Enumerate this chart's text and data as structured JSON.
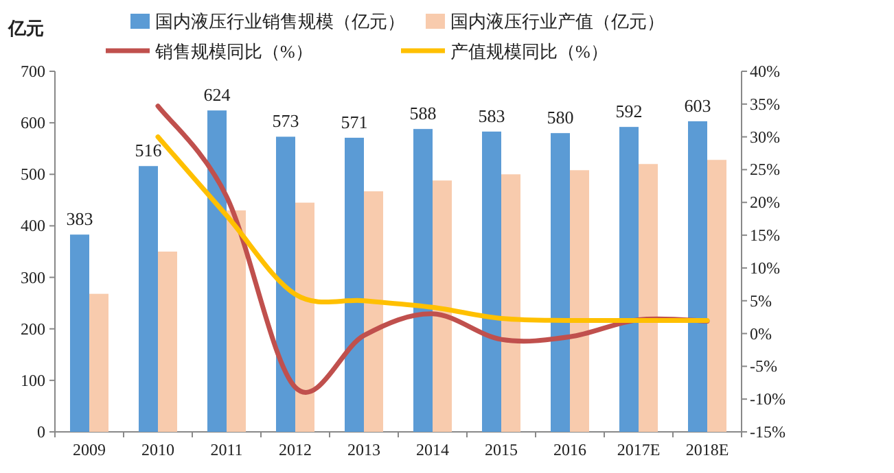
{
  "chart_data": {
    "type": "bar",
    "ylabel": "亿元",
    "categories": [
      "2009",
      "2010",
      "2011",
      "2012",
      "2013",
      "2014",
      "2015",
      "2016",
      "2017E",
      "2018E"
    ],
    "series": [
      {
        "name": "国内液压行业销售规模（亿元）",
        "color": "#5b9bd5",
        "values": [
          383,
          516,
          624,
          573,
          571,
          588,
          583,
          580,
          592,
          603
        ],
        "value_labels": [
          "383",
          "516",
          "624",
          "573",
          "571",
          "588",
          "583",
          "580",
          "592",
          "603"
        ]
      },
      {
        "name": "国内液压行业产值（亿元）",
        "color": "#f8cbad",
        "values": [
          268,
          350,
          430,
          445,
          467,
          488,
          500,
          508,
          520,
          528
        ]
      },
      {
        "name": "销售规模同比（%）",
        "type": "line",
        "axis": "y2",
        "color": "#c0504d",
        "values": [
          null,
          34.7,
          20.9,
          -8.2,
          -0.3,
          3.0,
          -0.9,
          -0.5,
          2.1,
          1.9
        ]
      },
      {
        "name": "产值规模同比（%）",
        "type": "line",
        "axis": "y2",
        "color": "#ffc000",
        "values": [
          null,
          30.0,
          18.0,
          6.0,
          5.0,
          4.0,
          2.3,
          2.0,
          2.0,
          2.0
        ]
      }
    ],
    "ylim": [
      0,
      700
    ],
    "yticks": [
      0,
      100,
      200,
      300,
      400,
      500,
      600,
      700
    ],
    "y2lim": [
      -15,
      40
    ],
    "y2ticks": [
      {
        "value": -15,
        "label": "-15%"
      },
      {
        "value": -10,
        "label": "-10%"
      },
      {
        "value": -5,
        "label": "-5%"
      },
      {
        "value": 0,
        "label": "0%"
      },
      {
        "value": 5,
        "label": "5%"
      },
      {
        "value": 10,
        "label": "10%"
      },
      {
        "value": 15,
        "label": "15%"
      },
      {
        "value": 20,
        "label": "20%"
      },
      {
        "value": 25,
        "label": "25%"
      },
      {
        "value": 30,
        "label": "30%"
      },
      {
        "value": 35,
        "label": "35%"
      },
      {
        "value": 40,
        "label": "40%"
      }
    ],
    "legend": "top",
    "grid": false
  }
}
